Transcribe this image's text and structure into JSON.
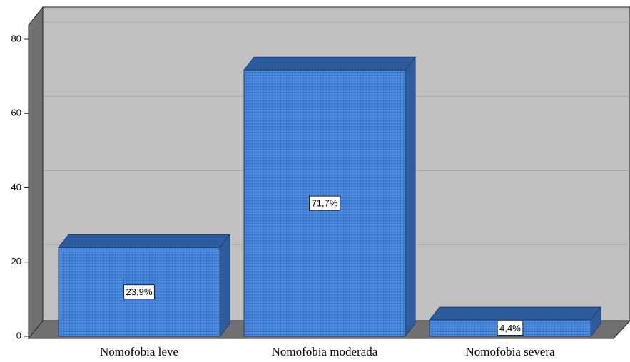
{
  "chart_data": {
    "type": "bar",
    "categories": [
      "Nomofobia leve",
      "Nomofobia moderada",
      "Nomofobia severa"
    ],
    "values": [
      23.9,
      71.7,
      4.4
    ],
    "value_labels": [
      "23,9%",
      "71,7%",
      "4,4%"
    ],
    "color": "#4a86d8",
    "ylim": [
      0,
      80
    ],
    "yticks": [
      0,
      20,
      40,
      60,
      80
    ],
    "grid": true
  }
}
